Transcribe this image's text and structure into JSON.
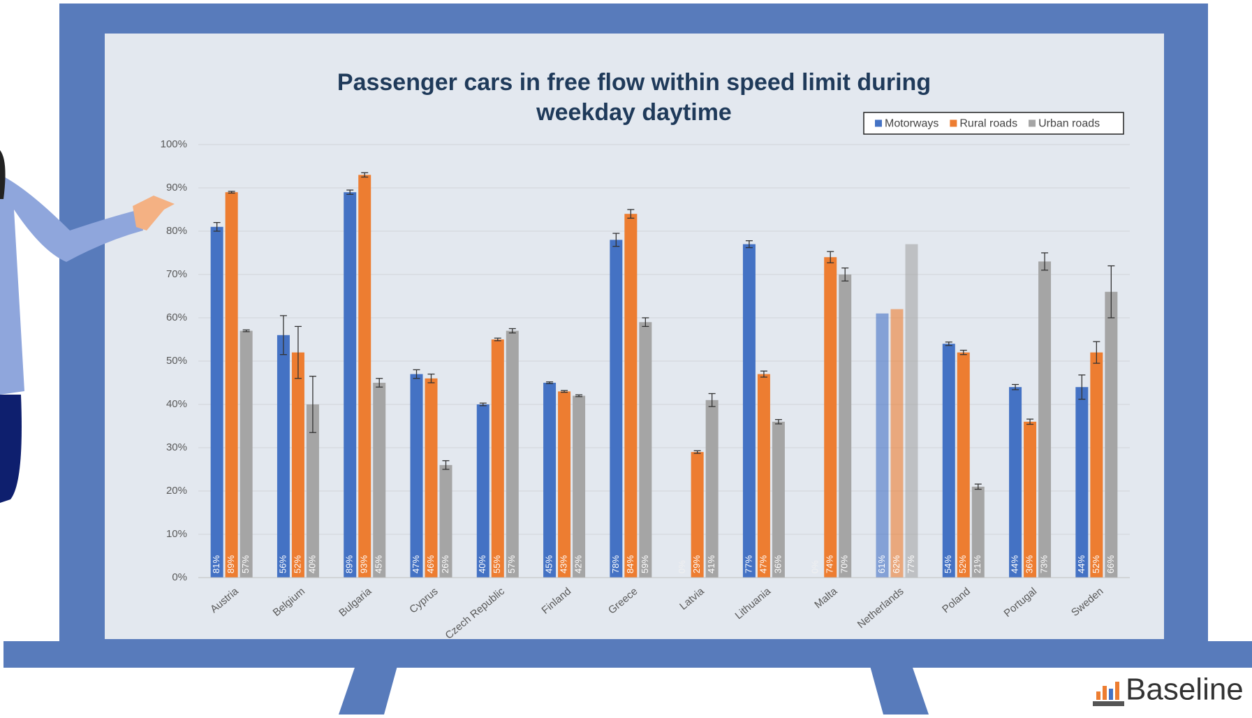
{
  "chart_data": {
    "type": "bar",
    "title": "Passenger cars in free flow within speed limit during weekday daytime",
    "categories": [
      "Austria",
      "Belgium",
      "Bulgaria",
      "Cyprus",
      "Czech Republic",
      "Finland",
      "Greece",
      "Latvia",
      "Lithuania",
      "Malta",
      "Netherlands",
      "Poland",
      "Portugal",
      "Sweden"
    ],
    "series": [
      {
        "name": "Motorways",
        "color": "#4472c4",
        "values": [
          81,
          56,
          89,
          47,
          40,
          45,
          78,
          0,
          77,
          0,
          61,
          54,
          44,
          44
        ],
        "value_labels": [
          "81%",
          "56%",
          "89%",
          "47%",
          "40%",
          "45%",
          "78%",
          "0%",
          "77%",
          "0%",
          "61%",
          "54%",
          "44%",
          "44%"
        ],
        "errors": [
          1,
          4.5,
          0.5,
          1,
          0.3,
          0.2,
          1.5,
          null,
          0.8,
          null,
          null,
          0.4,
          0.6,
          2.8
        ]
      },
      {
        "name": "Rural roads",
        "color": "#ed7d31",
        "values": [
          89,
          52,
          93,
          46,
          55,
          43,
          84,
          29,
          47,
          74,
          62,
          52,
          36,
          52
        ],
        "value_labels": [
          "89%",
          "52%",
          "93%",
          "46%",
          "55%",
          "43%",
          "84%",
          "29%",
          "47%",
          "74%",
          "62%",
          "52%",
          "36%",
          "52%"
        ],
        "errors": [
          0.2,
          6,
          0.5,
          1,
          0.3,
          0.2,
          1,
          0.3,
          0.7,
          1.3,
          null,
          0.5,
          0.6,
          2.5
        ]
      },
      {
        "name": "Urban roads",
        "color": "#a5a5a5",
        "values": [
          57,
          40,
          45,
          26,
          57,
          42,
          59,
          41,
          36,
          70,
          77,
          21,
          73,
          66
        ],
        "value_labels": [
          "57%",
          "40%",
          "45%",
          "26%",
          "57%",
          "42%",
          "59%",
          "41%",
          "36%",
          "70%",
          "77%",
          "21%",
          "73%",
          "66%"
        ],
        "errors": [
          0.2,
          6.5,
          1,
          1,
          0.5,
          0.2,
          1,
          1.5,
          0.5,
          1.5,
          null,
          0.6,
          2,
          6
        ]
      }
    ],
    "faded_categories": [
      10
    ],
    "ylim": [
      0,
      100
    ],
    "yticks": [
      {
        "value": 0,
        "label": "0%"
      },
      {
        "value": 10,
        "label": "10%"
      },
      {
        "value": 20,
        "label": "20%"
      },
      {
        "value": 30,
        "label": "30%"
      },
      {
        "value": 40,
        "label": "40%"
      },
      {
        "value": 50,
        "label": "50%"
      },
      {
        "value": 60,
        "label": "60%"
      },
      {
        "value": 70,
        "label": "70%"
      },
      {
        "value": 80,
        "label": "80%"
      },
      {
        "value": 90,
        "label": "90%"
      },
      {
        "value": 100,
        "label": "100%"
      }
    ],
    "grid": true,
    "legend": "top-right"
  },
  "logo": "Baseline"
}
